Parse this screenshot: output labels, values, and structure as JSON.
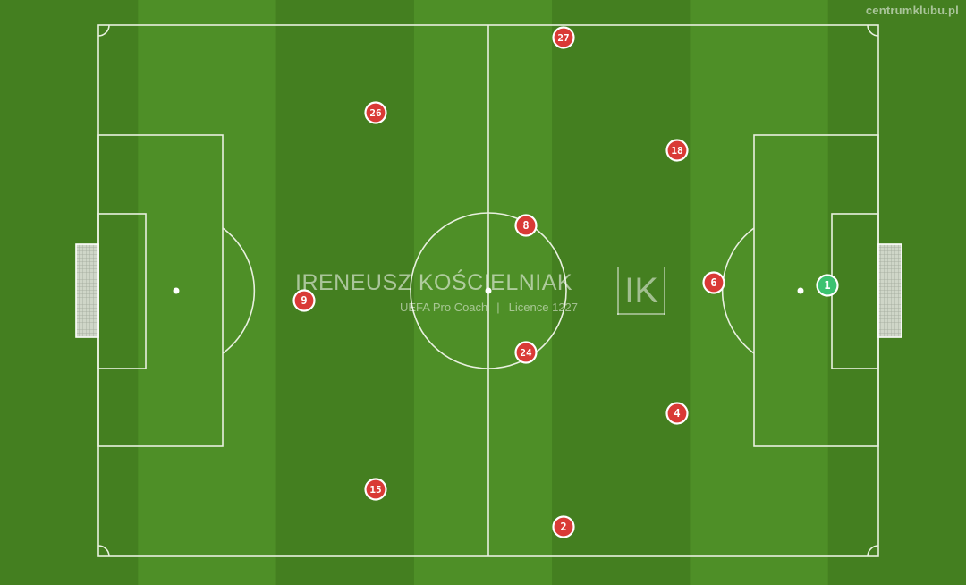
{
  "watermark": "centrumklubu.pl",
  "coach": {
    "name": "IRENEUSZ KOŚCIELNIAK",
    "role": "UEFA Pro Coach",
    "licence": "Licence 1227",
    "logo_text": "IK"
  },
  "colors": {
    "grass_light": "#4e8f27",
    "grass_dark": "#447f20",
    "line": "#e8f0df",
    "player_fill": "#d93a36",
    "goalkeeper_fill": "#3cc270",
    "player_stroke": "#ffffff"
  },
  "players": [
    {
      "number": "27",
      "role": "outfield"
    },
    {
      "number": "26",
      "role": "outfield"
    },
    {
      "number": "18",
      "role": "outfield"
    },
    {
      "number": "8",
      "role": "outfield"
    },
    {
      "number": "9",
      "role": "outfield"
    },
    {
      "number": "6",
      "role": "outfield"
    },
    {
      "number": "1",
      "role": "goalkeeper"
    },
    {
      "number": "24",
      "role": "outfield"
    },
    {
      "number": "4",
      "role": "outfield"
    },
    {
      "number": "15",
      "role": "outfield"
    },
    {
      "number": "2",
      "role": "outfield"
    }
  ]
}
